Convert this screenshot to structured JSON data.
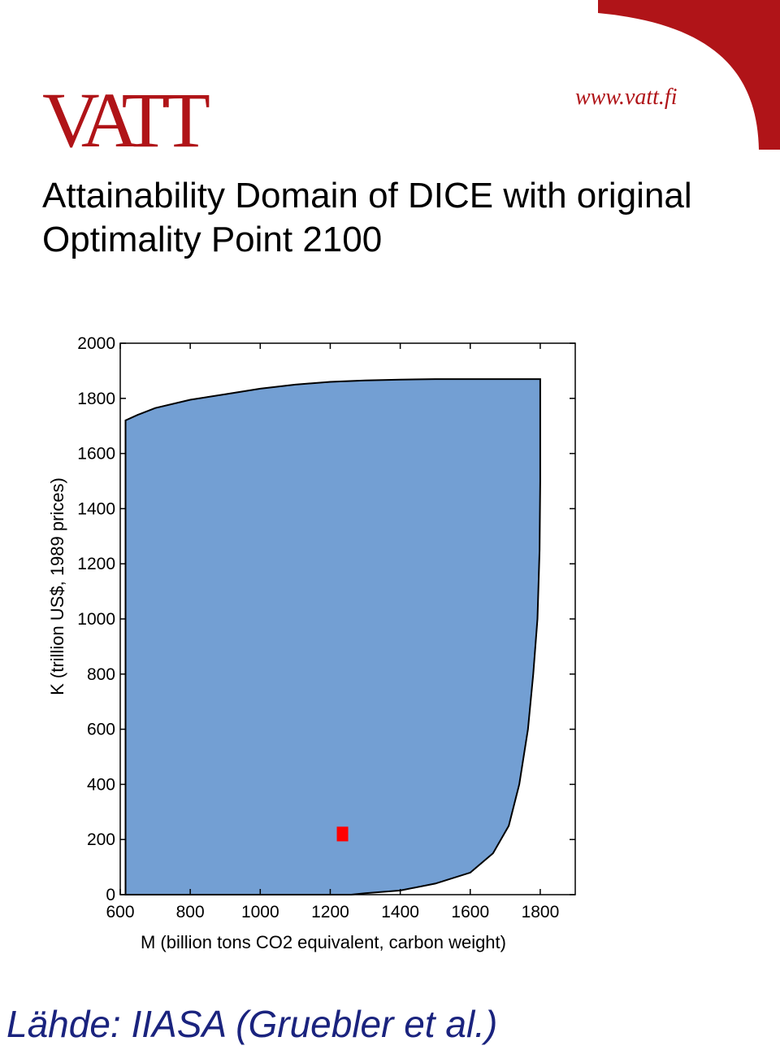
{
  "header": {
    "logo_text": "VATT",
    "url": "www.vatt.fi"
  },
  "colors": {
    "brand": "#b01418",
    "domain_fill": "#739fd3",
    "point": "#ff0000",
    "source_text": "#1a237e"
  },
  "title_lines": [
    "Attainability Domain of DICE with original",
    "Optimality Point 2100"
  ],
  "source": "Lähde: IIASA (Gruebler et al.)",
  "chart_data": {
    "type": "area",
    "xlabel": "M (billion tons CO2 equivalent, carbon weight)",
    "ylabel": "K (trillion US$, 1989 prices)",
    "xlim": [
      600,
      1900
    ],
    "ylim": [
      0,
      2000
    ],
    "xticks": [
      600,
      800,
      1000,
      1200,
      1400,
      1600,
      1800
    ],
    "yticks": [
      0,
      200,
      400,
      600,
      800,
      1000,
      1200,
      1400,
      1600,
      1800,
      2000
    ],
    "grid": false,
    "domain_boundary": [
      [
        615,
        0
      ],
      [
        615,
        1720
      ],
      [
        650,
        1740
      ],
      [
        700,
        1765
      ],
      [
        800,
        1795
      ],
      [
        900,
        1815
      ],
      [
        1000,
        1835
      ],
      [
        1100,
        1850
      ],
      [
        1200,
        1860
      ],
      [
        1300,
        1865
      ],
      [
        1400,
        1868
      ],
      [
        1500,
        1870
      ],
      [
        1600,
        1870
      ],
      [
        1800,
        1870
      ],
      [
        1800,
        1500
      ],
      [
        1798,
        1250
      ],
      [
        1792,
        1000
      ],
      [
        1780,
        800
      ],
      [
        1765,
        600
      ],
      [
        1740,
        400
      ],
      [
        1710,
        250
      ],
      [
        1665,
        150
      ],
      [
        1600,
        80
      ],
      [
        1500,
        40
      ],
      [
        1400,
        15
      ],
      [
        1300,
        5
      ],
      [
        1260,
        0
      ],
      [
        615,
        0
      ]
    ],
    "optimality_point": {
      "x": 1235,
      "y": 220
    }
  }
}
